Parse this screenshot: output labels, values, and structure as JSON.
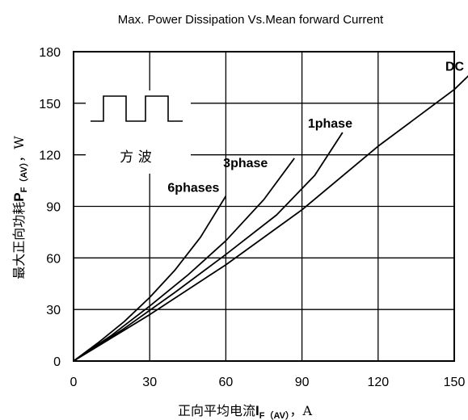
{
  "chart_data": {
    "type": "line",
    "title": "Max. Power Dissipation Vs.Mean forward Current",
    "xlabel": {
      "prefix": "正向平均电流",
      "symbol": "I",
      "sub": "F（AV）",
      "suffix": "，A"
    },
    "ylabel": {
      "prefix": "最大正向功耗",
      "symbol": "P",
      "sub": "F（AV）",
      "suffix": "，W"
    },
    "xlim": [
      0,
      150
    ],
    "ylim": [
      0,
      180
    ],
    "xticks": [
      0,
      30,
      60,
      90,
      120,
      150
    ],
    "yticks": [
      0,
      30,
      60,
      90,
      120,
      150,
      180
    ],
    "grid": true,
    "inset_label": "方 波",
    "series": [
      {
        "name": "6phases",
        "x": [
          0,
          10,
          20,
          30,
          40,
          50,
          60
        ],
        "y": [
          0,
          11,
          23,
          37,
          53,
          72,
          96
        ]
      },
      {
        "name": "3phase",
        "x": [
          0,
          15,
          30,
          45,
          60,
          75,
          87
        ],
        "y": [
          0,
          15,
          32,
          50,
          70,
          94,
          118
        ]
      },
      {
        "name": "1phase",
        "x": [
          0,
          20,
          40,
          60,
          80,
          95,
          106
        ],
        "y": [
          0,
          19,
          40,
          62,
          85,
          108,
          133
        ]
      },
      {
        "name": "DC",
        "x": [
          0,
          30,
          60,
          90,
          120,
          150,
          157
        ],
        "y": [
          0,
          27,
          56,
          88,
          125,
          158,
          168
        ]
      }
    ]
  }
}
